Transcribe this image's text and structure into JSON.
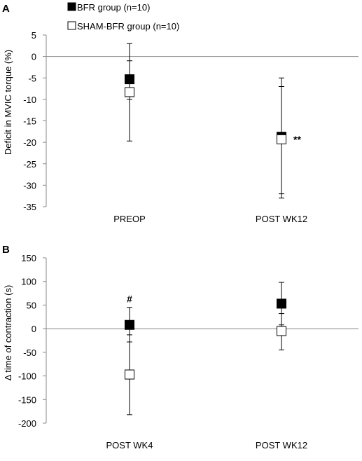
{
  "panel_a_letter": "A",
  "panel_b_letter": "B",
  "legend": [
    {
      "label": "BFR group (n=10)",
      "marker": "filled-square"
    },
    {
      "label": "SHAM-BFR group (n=10)",
      "marker": "open-square"
    }
  ],
  "colors": {
    "filled": "#000000",
    "open": "#ffffff",
    "axis": "#888888"
  },
  "chart_data": [
    {
      "type": "scatter",
      "panel": "A",
      "ylabel": "Deficit  in MVIC torque (%)",
      "xlabel": "",
      "categories": [
        "PREOP",
        "POST WK12"
      ],
      "ylim": [
        -35,
        5
      ],
      "yticks": [
        5,
        0,
        -5,
        -10,
        -15,
        -20,
        -25,
        -30,
        -35
      ],
      "grid": false,
      "series": [
        {
          "name": "BFR group (n=10)",
          "marker": "filled-square",
          "values": [
            -5.3,
            -18.7
          ],
          "err_low": [
            -10,
            -32
          ],
          "err_high": [
            3,
            -5
          ]
        },
        {
          "name": "SHAM-BFR group (n=10)",
          "marker": "open-square",
          "values": [
            -8.3,
            -19.3
          ],
          "err_low": [
            -19.7,
            -33
          ],
          "err_high": [
            -1,
            -7
          ]
        }
      ],
      "annotations": [
        {
          "text": "**",
          "category": "POST WK12",
          "y": -19.3
        }
      ]
    },
    {
      "type": "scatter",
      "panel": "B",
      "ylabel": "Δ time of contraction (s)",
      "xlabel": "",
      "categories": [
        "POST WK4",
        "POST WK12"
      ],
      "ylim": [
        -200,
        150
      ],
      "yticks": [
        150,
        100,
        50,
        0,
        -50,
        -100,
        -150,
        -200
      ],
      "grid": false,
      "series": [
        {
          "name": "BFR group (n=10)",
          "marker": "filled-square",
          "values": [
            8,
            53
          ],
          "err_low": [
            -28,
            8
          ],
          "err_high": [
            45,
            98
          ]
        },
        {
          "name": "SHAM-BFR group (n=10)",
          "marker": "open-square",
          "values": [
            -97,
            -5
          ],
          "err_low": [
            -182,
            -45
          ],
          "err_high": [
            -13,
            32
          ]
        }
      ],
      "annotations": [
        {
          "text": "#",
          "category": "POST WK4",
          "y": 8
        }
      ]
    }
  ]
}
